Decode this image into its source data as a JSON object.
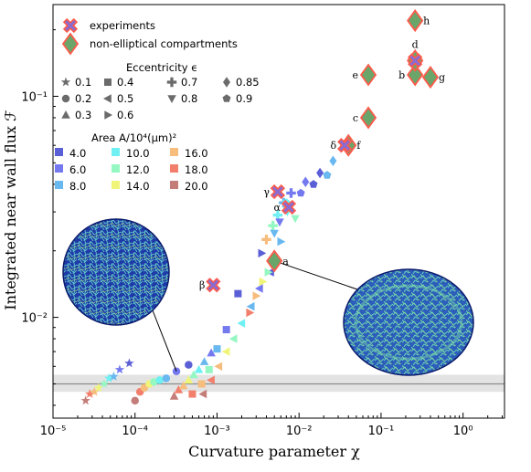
{
  "chart_data": {
    "type": "scatter",
    "xscale": "log",
    "yscale": "log",
    "xlim": [
      1e-05,
      3.2
    ],
    "ylim": [
      0.0035,
      0.26
    ],
    "xlabel": "Curvature parameter χ",
    "ylabel": "Integrated near wall flux ℱ",
    "xtick_labels": [
      "10⁻⁵",
      "10⁻⁴",
      "10⁻³",
      "10⁻²",
      "10⁻¹",
      "10⁰"
    ],
    "xtick_values": [
      1e-05,
      0.0001,
      0.001,
      0.01,
      0.1,
      1
    ],
    "ytick_labels": [
      "10⁻²",
      "10⁻¹"
    ],
    "ytick_values": [
      0.01,
      0.1
    ],
    "baseline": {
      "value": 0.005,
      "band": [
        0.0046,
        0.0055
      ]
    },
    "legend": {
      "series": [
        {
          "label": "experiments",
          "marker": "X"
        },
        {
          "label": "non-elliptical compartments",
          "marker": "diamond"
        }
      ],
      "eccentricity_title": "Eccentricity ϵ",
      "eccentricity": [
        {
          "label": "0.1",
          "marker": "star"
        },
        {
          "label": "0.2",
          "marker": "circle"
        },
        {
          "label": "0.3",
          "marker": "triangle-up"
        },
        {
          "label": "0.4",
          "marker": "square"
        },
        {
          "label": "0.5",
          "marker": "triangle-left"
        },
        {
          "label": "0.6",
          "marker": "triangle-right"
        },
        {
          "label": "0.7",
          "marker": "plus"
        },
        {
          "label": "0.8",
          "marker": "triangle-down"
        },
        {
          "label": "0.85",
          "marker": "diamond"
        },
        {
          "label": "0.9",
          "marker": "pentagon"
        }
      ],
      "area_title": "Area A/10⁴(μm)²",
      "area": [
        {
          "label": "4.0",
          "color": "#5a5fd6"
        },
        {
          "label": "6.0",
          "color": "#7479f0"
        },
        {
          "label": "8.0",
          "color": "#69b8ef"
        },
        {
          "label": "10.0",
          "color": "#6ff0f2"
        },
        {
          "label": "12.0",
          "color": "#95f7c2"
        },
        {
          "label": "14.0",
          "color": "#f0f57a"
        },
        {
          "label": "16.0",
          "color": "#f6bd7c"
        },
        {
          "label": "18.0",
          "color": "#f17f6c"
        },
        {
          "label": "20.0",
          "color": "#c47d78"
        }
      ]
    },
    "points": [
      {
        "x": 2.5e-05,
        "y": 0.0042,
        "m": "star",
        "c": "#c47d78"
      },
      {
        "x": 2.8e-05,
        "y": 0.0045,
        "m": "star",
        "c": "#f17f6c"
      },
      {
        "x": 3.2e-05,
        "y": 0.0046,
        "m": "star",
        "c": "#f6bd7c"
      },
      {
        "x": 3.6e-05,
        "y": 0.0048,
        "m": "star",
        "c": "#f0f57a"
      },
      {
        "x": 4.2e-05,
        "y": 0.005,
        "m": "star",
        "c": "#95f7c2"
      },
      {
        "x": 4.8e-05,
        "y": 0.0053,
        "m": "star",
        "c": "#6ff0f2"
      },
      {
        "x": 5.5e-05,
        "y": 0.0054,
        "m": "star",
        "c": "#69b8ef"
      },
      {
        "x": 6.5e-05,
        "y": 0.0058,
        "m": "star",
        "c": "#7479f0"
      },
      {
        "x": 8.5e-05,
        "y": 0.0062,
        "m": "star",
        "c": "#5a5fd6"
      },
      {
        "x": 0.0001,
        "y": 0.0042,
        "m": "circle",
        "c": "#c47d78"
      },
      {
        "x": 0.000115,
        "y": 0.0046,
        "m": "circle",
        "c": "#f17f6c"
      },
      {
        "x": 0.00013,
        "y": 0.0048,
        "m": "circle",
        "c": "#f6bd7c"
      },
      {
        "x": 0.00015,
        "y": 0.005,
        "m": "circle",
        "c": "#f0f57a"
      },
      {
        "x": 0.00017,
        "y": 0.0051,
        "m": "circle",
        "c": "#95f7c2"
      },
      {
        "x": 0.0002,
        "y": 0.0052,
        "m": "circle",
        "c": "#6ff0f2"
      },
      {
        "x": 0.00024,
        "y": 0.0053,
        "m": "circle",
        "c": "#69b8ef"
      },
      {
        "x": 0.00032,
        "y": 0.0057,
        "m": "circle",
        "c": "#7479f0"
      },
      {
        "x": 0.00045,
        "y": 0.0061,
        "m": "circle",
        "c": "#5a5fd6"
      },
      {
        "x": 0.0003,
        "y": 0.0044,
        "m": "triangle-up",
        "c": "#c47d78"
      },
      {
        "x": 0.00034,
        "y": 0.0047,
        "m": "triangle-up",
        "c": "#f17f6c"
      },
      {
        "x": 0.00039,
        "y": 0.0049,
        "m": "triangle-up",
        "c": "#f6bd7c"
      },
      {
        "x": 0.00045,
        "y": 0.0052,
        "m": "triangle-up",
        "c": "#f0f57a"
      },
      {
        "x": 0.00052,
        "y": 0.0055,
        "m": "triangle-up",
        "c": "#95f7c2"
      },
      {
        "x": 0.0006,
        "y": 0.0058,
        "m": "triangle-up",
        "c": "#6ff0f2"
      },
      {
        "x": 0.0007,
        "y": 0.0063,
        "m": "triangle-up",
        "c": "#69b8ef"
      },
      {
        "x": 0.00085,
        "y": 0.0069,
        "m": "triangle-up",
        "c": "#7479f0"
      },
      {
        "x": 0.0005,
        "y": 0.0045,
        "m": "square",
        "c": "#f17f6c"
      },
      {
        "x": 0.00065,
        "y": 0.005,
        "m": "square",
        "c": "#f6bd7c"
      },
      {
        "x": 0.0008,
        "y": 0.0058,
        "m": "square",
        "c": "#95f7c2"
      },
      {
        "x": 0.001,
        "y": 0.0072,
        "m": "square",
        "c": "#69b8ef"
      },
      {
        "x": 0.0013,
        "y": 0.0088,
        "m": "square",
        "c": "#7479f0"
      },
      {
        "x": 0.0018,
        "y": 0.0128,
        "m": "square",
        "c": "#5a5fd6"
      },
      {
        "x": 0.00068,
        "y": 0.0045,
        "m": "triangle-left",
        "c": "#c47d78"
      },
      {
        "x": 0.00085,
        "y": 0.0052,
        "m": "triangle-left",
        "c": "#f17f6c"
      },
      {
        "x": 0.00105,
        "y": 0.006,
        "m": "triangle-left",
        "c": "#f6bd7c"
      },
      {
        "x": 0.0013,
        "y": 0.007,
        "m": "triangle-left",
        "c": "#f0f57a"
      },
      {
        "x": 0.0016,
        "y": 0.008,
        "m": "triangle-left",
        "c": "#95f7c2"
      },
      {
        "x": 0.002,
        "y": 0.0094,
        "m": "triangle-left",
        "c": "#6ff0f2"
      },
      {
        "x": 0.0026,
        "y": 0.0112,
        "m": "triangle-left",
        "c": "#69b8ef"
      },
      {
        "x": 0.0033,
        "y": 0.0135,
        "m": "triangle-left",
        "c": "#7479f0"
      },
      {
        "x": 0.0045,
        "y": 0.016,
        "m": "triangle-left",
        "c": "#5a5fd6"
      },
      {
        "x": 0.0025,
        "y": 0.0105,
        "m": "triangle-right",
        "c": "#f17f6c"
      },
      {
        "x": 0.003,
        "y": 0.0125,
        "m": "triangle-right",
        "c": "#f6bd7c"
      },
      {
        "x": 0.0036,
        "y": 0.0145,
        "m": "triangle-right",
        "c": "#f0f57a"
      },
      {
        "x": 0.0042,
        "y": 0.016,
        "m": "triangle-right",
        "c": "#95f7c2"
      },
      {
        "x": 0.005,
        "y": 0.0185,
        "m": "triangle-right",
        "c": "#6ff0f2"
      },
      {
        "x": 0.006,
        "y": 0.022,
        "m": "triangle-right",
        "c": "#69b8ef"
      },
      {
        "x": 0.0035,
        "y": 0.0195,
        "m": "triangle-right",
        "c": "#5a5fd6"
      },
      {
        "x": 0.004,
        "y": 0.0225,
        "m": "plus",
        "c": "#f6bd7c"
      },
      {
        "x": 0.0048,
        "y": 0.026,
        "m": "plus",
        "c": "#95f7c2"
      },
      {
        "x": 0.0055,
        "y": 0.029,
        "m": "plus",
        "c": "#6ff0f2"
      },
      {
        "x": 0.0065,
        "y": 0.033,
        "m": "plus",
        "c": "#69b8ef"
      },
      {
        "x": 0.008,
        "y": 0.0365,
        "m": "plus",
        "c": "#7479f0"
      },
      {
        "x": 0.005,
        "y": 0.024,
        "m": "triangle-down",
        "c": "#69b8ef"
      },
      {
        "x": 0.0058,
        "y": 0.027,
        "m": "triangle-down",
        "c": "#7479f0"
      },
      {
        "x": 0.0072,
        "y": 0.03,
        "m": "triangle-down",
        "c": "#6ff0f2"
      },
      {
        "x": 0.009,
        "y": 0.028,
        "m": "triangle-down",
        "c": "#95f7c2"
      },
      {
        "x": 0.012,
        "y": 0.041,
        "m": "diamond",
        "c": "#7479f0"
      },
      {
        "x": 0.018,
        "y": 0.045,
        "m": "diamond",
        "c": "#5a5fd6"
      },
      {
        "x": 0.026,
        "y": 0.051,
        "m": "diamond",
        "c": "#69b8ef"
      },
      {
        "x": 0.0105,
        "y": 0.0365,
        "m": "pentagon",
        "c": "#7479f0"
      },
      {
        "x": 0.015,
        "y": 0.04,
        "m": "pentagon",
        "c": "#5a5fd6"
      },
      {
        "x": 0.022,
        "y": 0.044,
        "m": "pentagon",
        "c": "#69b8ef"
      },
      {
        "x": 0.007,
        "y": 0.033,
        "m": "pentagon",
        "c": "#6ff0f2"
      }
    ],
    "experiments": [
      {
        "x": 0.0055,
        "y": 0.037,
        "label": "γ"
      },
      {
        "x": 0.0075,
        "y": 0.0315,
        "label": "α"
      },
      {
        "x": 0.0009,
        "y": 0.014,
        "label": "β"
      },
      {
        "x": 0.036,
        "y": 0.06,
        "label": "δ"
      },
      {
        "x": 0.26,
        "y": 0.145,
        "label": ""
      }
    ],
    "non_elliptical": [
      {
        "x": 0.005,
        "y": 0.018,
        "label": "a"
      },
      {
        "x": 0.26,
        "y": 0.125,
        "label": "b"
      },
      {
        "x": 0.07,
        "y": 0.08,
        "label": "c"
      },
      {
        "x": 0.26,
        "y": 0.145,
        "label": "d"
      },
      {
        "x": 0.07,
        "y": 0.125,
        "label": "e"
      },
      {
        "x": 0.04,
        "y": 0.06,
        "label": "f"
      },
      {
        "x": 0.4,
        "y": 0.122,
        "label": "g"
      },
      {
        "x": 0.26,
        "y": 0.22,
        "label": "h"
      }
    ],
    "insets": [
      {
        "name": "circular-compartment-inset",
        "target_x": 0.00032,
        "target_y": 0.0057
      },
      {
        "name": "elliptical-compartment-inset",
        "target_x": 0.005,
        "target_y": 0.018
      }
    ]
  }
}
